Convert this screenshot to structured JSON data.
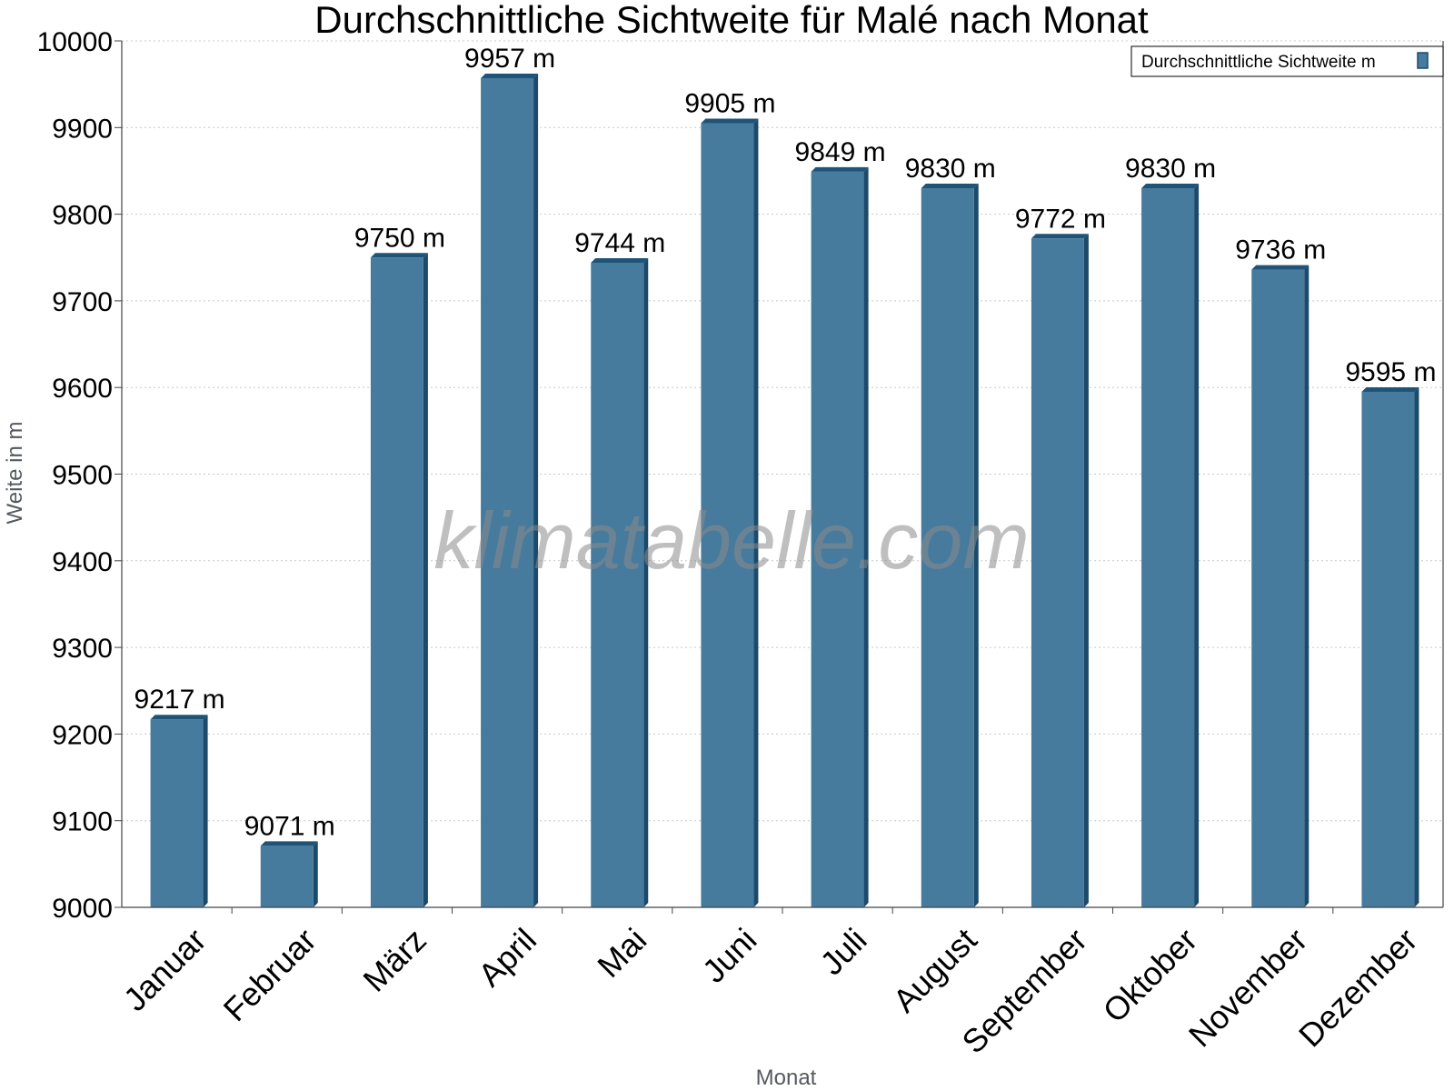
{
  "chart_data": {
    "type": "bar",
    "title": "Durchschnittliche Sichtweite für Malé nach Monat",
    "xlabel": "Monat",
    "ylabel": "Weite in m",
    "categories": [
      "Januar",
      "Februar",
      "März",
      "April",
      "Mai",
      "Juni",
      "Juli",
      "August",
      "September",
      "Oktober",
      "November",
      "Dezember"
    ],
    "series": [
      {
        "name": "Durchschnittliche Sichtweite m",
        "values": [
          9217,
          9071,
          9750,
          9957,
          9744,
          9905,
          9849,
          9830,
          9772,
          9830,
          9736,
          9595
        ],
        "value_labels": [
          "9217 m",
          "9071 m",
          "9750 m",
          "9957 m",
          "9744 m",
          "9905 m",
          "9849 m",
          "9830 m",
          "9772 m",
          "9830 m",
          "9736 m",
          "9595 m"
        ]
      }
    ],
    "ylim": [
      9000,
      10000
    ],
    "yticks": [
      "9000",
      "9100",
      "9200",
      "9300",
      "9400",
      "9500",
      "9600",
      "9700",
      "9800",
      "9900",
      "10000"
    ],
    "grid": true,
    "legend_position": "top-right",
    "colors": {
      "bar": "#467b9e",
      "bar_side": "#1b4a6b",
      "bar_top": "#1f5478",
      "grid": "#c8c8c8",
      "axis": "#444444"
    },
    "watermark": "klimatabelle.com"
  }
}
